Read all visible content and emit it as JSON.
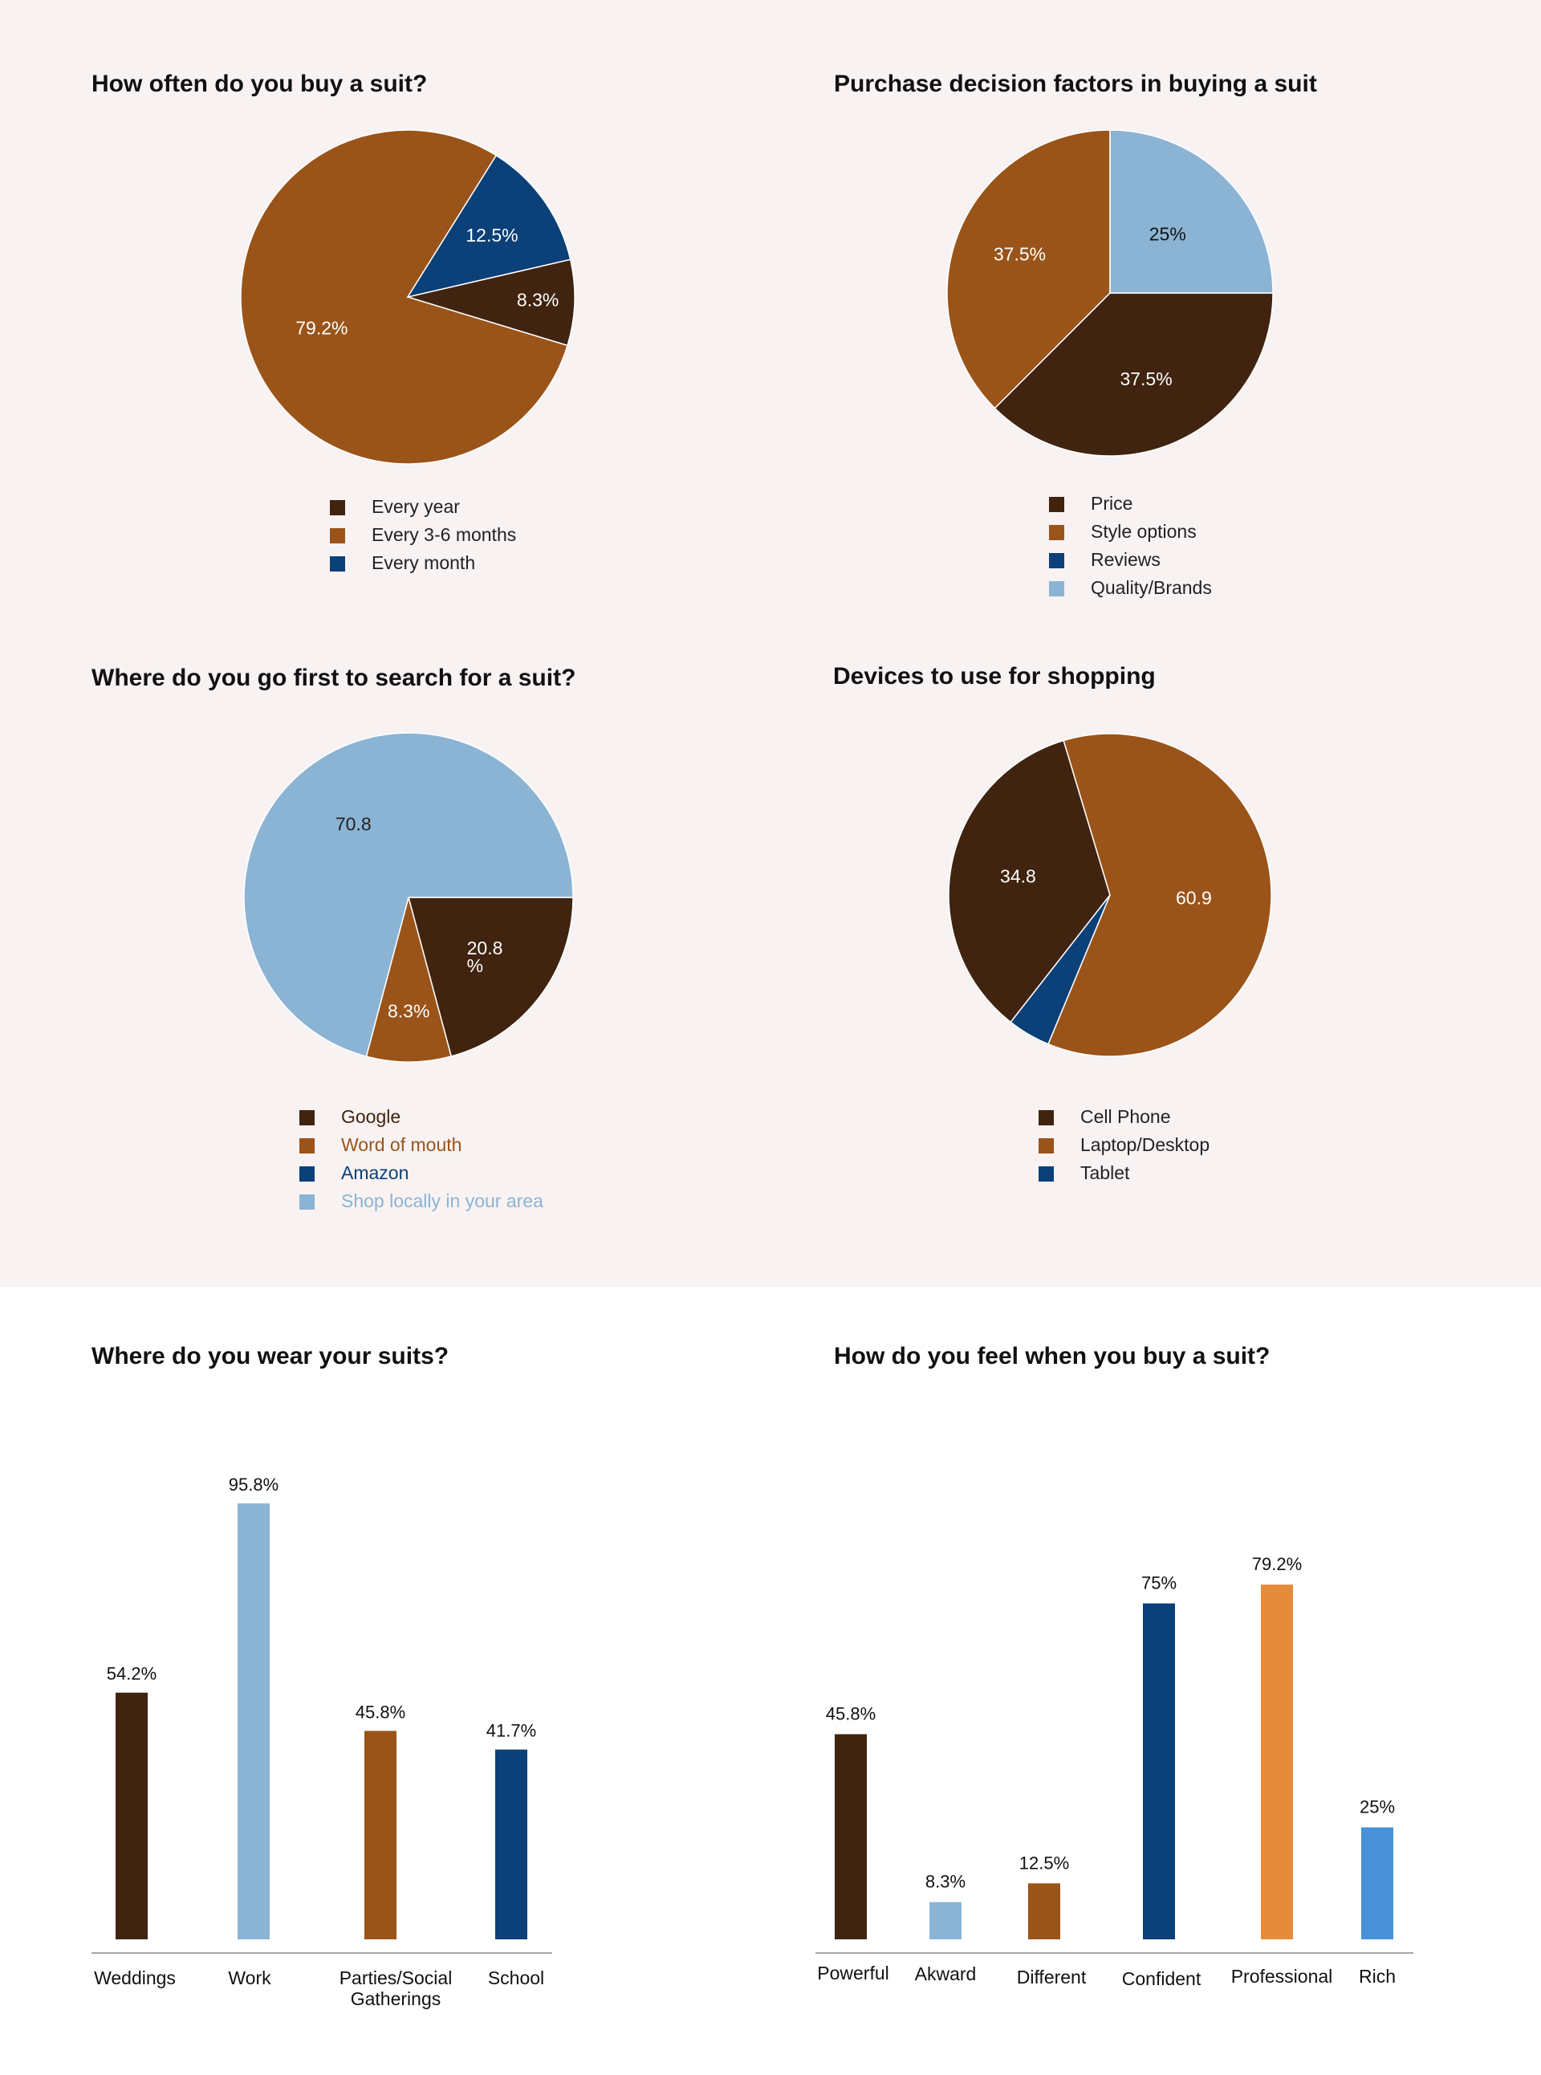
{
  "colors": {
    "dark_brown": "#402410",
    "brown": "#9a5419",
    "navy": "#0b4078",
    "light_blue": "#8bb4d4",
    "orange": "#e58b3c",
    "blue": "#4891d8"
  },
  "chart_data": [
    {
      "id": "suit-frequency",
      "type": "pie",
      "title": "How often do you buy a suit?",
      "slices": [
        {
          "label": "Every year",
          "value": 8.3,
          "text": "8.3%",
          "color": "#402410",
          "text_color": "#ffffff"
        },
        {
          "label": "Every 3-6 months",
          "value": 79.2,
          "text": "79.2%",
          "color": "#9a5419",
          "text_color": "#ffffff"
        },
        {
          "label": "Every month",
          "value": 12.5,
          "text": "12.5%",
          "color": "#0b4078",
          "text_color": "#ffffff"
        }
      ],
      "legend_text_color": "#222222"
    },
    {
      "id": "decision-factors",
      "type": "pie",
      "title": "Purchase decision factors in buying a suit",
      "slices": [
        {
          "label": "Price",
          "value": 37.5,
          "text": "37.5%",
          "color": "#402410",
          "text_color": "#ffffff"
        },
        {
          "label": "Style options",
          "value": 37.5,
          "text": "37.5%",
          "color": "#9a5419",
          "text_color": "#ffffff"
        },
        {
          "label": "Reviews",
          "value": 0,
          "text": "",
          "color": "#0b4078",
          "text_color": "#ffffff"
        },
        {
          "label": "Quality/Brands",
          "value": 25,
          "text": "25%",
          "color": "#8bb4d4",
          "text_color": "#111111"
        }
      ],
      "legend_text_color": "#222222"
    },
    {
      "id": "search-location",
      "type": "pie",
      "title": "Where do you go first to search for a suit?",
      "slices": [
        {
          "label": "Google",
          "value": 20.8,
          "text": "20.8\n%",
          "color": "#402410",
          "text_color": "#ffffff"
        },
        {
          "label": "Word of mouth",
          "value": 8.3,
          "text": "8.3%",
          "color": "#9a5419",
          "text_color": "#ffffff"
        },
        {
          "label": "Amazon",
          "value": 0,
          "text": "",
          "color": "#0b4078",
          "text_color": "#ffffff"
        },
        {
          "label": "Shop locally in your area",
          "value": 70.8,
          "text": "70.8",
          "color": "#8bb4d4",
          "text_color": "#222222"
        }
      ],
      "legend_text_color": "match"
    },
    {
      "id": "devices",
      "type": "pie",
      "title": "Devices to use for shopping",
      "slices": [
        {
          "label": "Cell Phone",
          "value": 34.8,
          "text": "34.8",
          "color": "#402410",
          "text_color": "#ffffff"
        },
        {
          "label": "Laptop/Desktop",
          "value": 60.9,
          "text": "60.9",
          "color": "#9a5419",
          "text_color": "#ffffff"
        },
        {
          "label": "Tablet",
          "value": 4.3,
          "text": "",
          "color": "#0b4078",
          "text_color": "#ffffff"
        }
      ],
      "legend_text_color": "#222222"
    },
    {
      "id": "wear-location",
      "type": "bar",
      "title": "Where do you wear your suits?",
      "categories": [
        "Weddings",
        "Work",
        "Parties/Social\nGatherings",
        "School"
      ],
      "values": [
        54.2,
        95.8,
        45.8,
        41.7
      ],
      "value_labels": [
        "54.2%",
        "95.8%",
        "45.8%",
        "41.7%"
      ],
      "colors": [
        "#402410",
        "#8bb4d4",
        "#9a5419",
        "#0b4078"
      ],
      "ylim": [
        0,
        100
      ]
    },
    {
      "id": "buying-feelings",
      "type": "bar",
      "title": "How do you feel when you buy a suit?",
      "categories": [
        "Powerful",
        "Akward",
        "Different",
        "Confident",
        "Professional",
        "Rich"
      ],
      "values": [
        45.8,
        8.3,
        12.5,
        75,
        79.2,
        25
      ],
      "value_labels": [
        "45.8%",
        "8.3%",
        "12.5%",
        "75%",
        "79.2%",
        "25%"
      ],
      "colors": [
        "#402410",
        "#8bb4d4",
        "#9a5419",
        "#0b4078",
        "#e58b3c",
        "#4891d8"
      ],
      "ylim": [
        0,
        100
      ]
    }
  ]
}
